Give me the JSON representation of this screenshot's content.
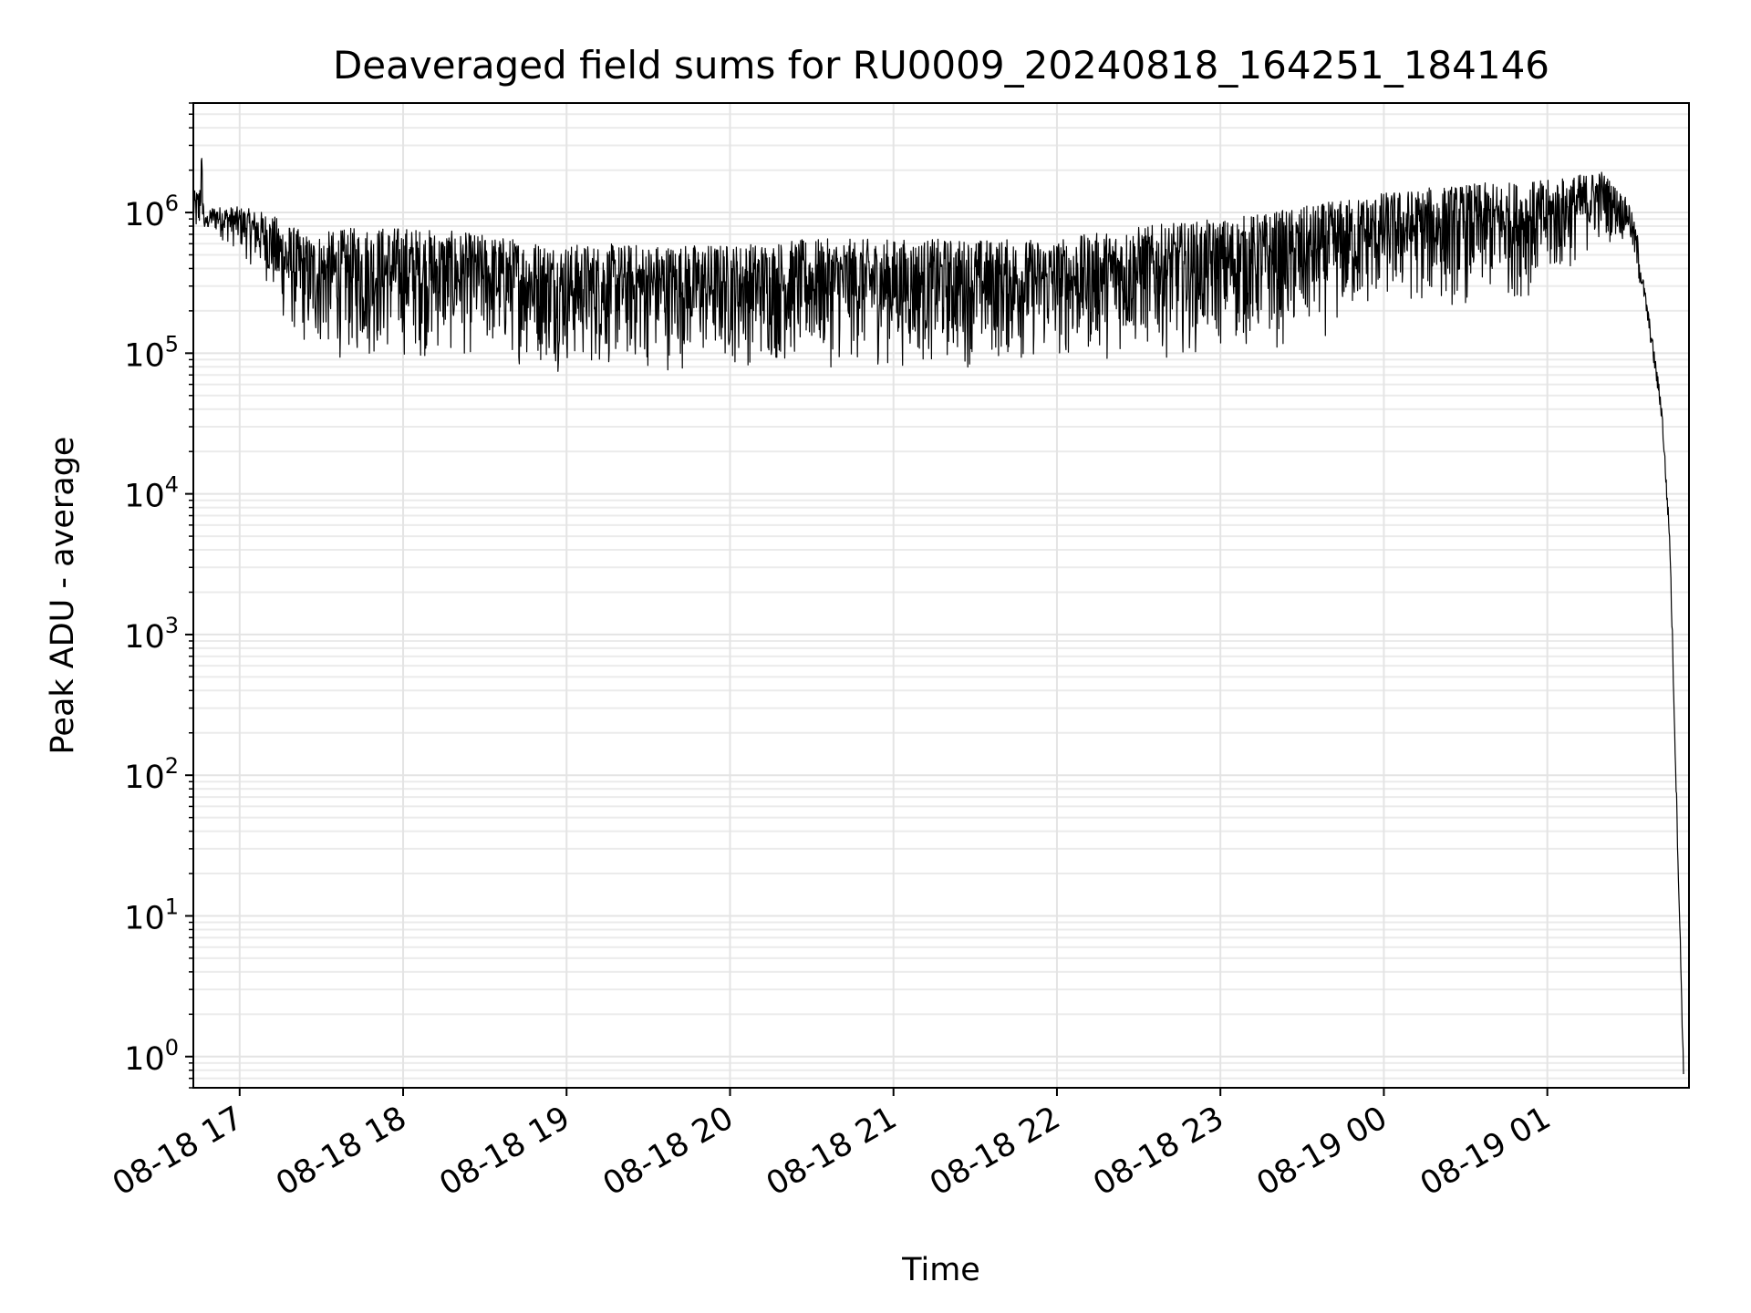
{
  "chart_data": {
    "type": "line",
    "title": "Deaveraged field sums for RU0009_20240818_164251_184146",
    "xlabel": "Time",
    "ylabel": "Peak ADU - average",
    "yscale": "log",
    "grid": true,
    "xlim": [
      "2024-08-18 16:43",
      "2024-08-19 01:52"
    ],
    "ylim": [
      0.6,
      6000000
    ],
    "x_ticks": [
      "08-18 17",
      "08-18 18",
      "08-18 19",
      "08-18 20",
      "08-18 21",
      "08-18 22",
      "08-18 23",
      "08-19 00",
      "08-19 01"
    ],
    "y_ticks": [
      {
        "base": "10",
        "exp": "0"
      },
      {
        "base": "10",
        "exp": "1"
      },
      {
        "base": "10",
        "exp": "2"
      },
      {
        "base": "10",
        "exp": "3"
      },
      {
        "base": "10",
        "exp": "4"
      },
      {
        "base": "10",
        "exp": "5"
      },
      {
        "base": "10",
        "exp": "6"
      }
    ],
    "series": [
      {
        "color": "#000000",
        "x": [
          "2024-08-18 16:43",
          "2024-08-18 16:45",
          "2024-08-18 16:46",
          "2024-08-18 16:47",
          "2024-08-18 16:50",
          "2024-08-18 17:00",
          "2024-08-18 17:10",
          "2024-08-18 17:15",
          "2024-08-18 17:25",
          "2024-08-18 17:45",
          "2024-08-18 18:00",
          "2024-08-18 18:30",
          "2024-08-18 19:00",
          "2024-08-18 19:30",
          "2024-08-18 20:00",
          "2024-08-18 20:30",
          "2024-08-18 21:00",
          "2024-08-18 21:30",
          "2024-08-18 22:00",
          "2024-08-18 22:30",
          "2024-08-18 23:00",
          "2024-08-18 23:30",
          "2024-08-19 00:00",
          "2024-08-19 00:30",
          "2024-08-19 01:00",
          "2024-08-19 01:20",
          "2024-08-19 01:30",
          "2024-08-19 01:35",
          "2024-08-19 01:38",
          "2024-08-19 01:42",
          "2024-08-19 01:45",
          "2024-08-19 01:50"
        ],
        "upper": [
          1400000,
          1500000,
          2900000,
          900000,
          1100000,
          1100000,
          1000000,
          900000,
          700000,
          800000,
          800000,
          700000,
          600000,
          600000,
          600000,
          650000,
          650000,
          650000,
          650000,
          800000,
          900000,
          1100000,
          1400000,
          1600000,
          1700000,
          2000000,
          1200000,
          500000,
          300000,
          100000,
          20000,
          1
        ],
        "lower": [
          700000,
          500000,
          800000,
          700000,
          700000,
          500000,
          300000,
          150000,
          90000,
          80000,
          85000,
          85000,
          70000,
          70000,
          75000,
          75000,
          75000,
          75000,
          80000,
          90000,
          95000,
          100000,
          200000,
          200000,
          250000,
          600000,
          600000,
          200000,
          60000,
          15000,
          1000,
          0.6
        ]
      }
    ]
  }
}
